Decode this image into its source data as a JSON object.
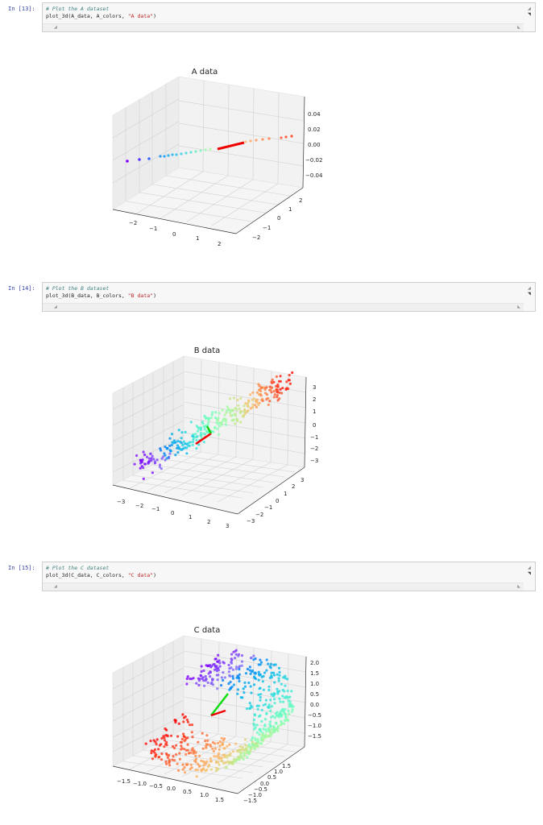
{
  "cells": [
    {
      "prompt": "In [13]:",
      "comment": "# Plot the A dataset",
      "code_prefix": "plot_3d(A_data, A_colors, ",
      "code_string": "\"A data\"",
      "code_suffix": ")"
    },
    {
      "prompt": "In [14]:",
      "comment": "# Plot the B dataset",
      "code_prefix": "plot_3d(B_data, B_colors, ",
      "code_string": "\"B data\"",
      "code_suffix": ")"
    },
    {
      "prompt": "In [15]:",
      "comment": "# Plot the C dataset",
      "code_prefix": "plot_3d(C_data, C_colors, ",
      "code_string": "\"C data\"",
      "code_suffix": ")"
    }
  ],
  "scroll_icons": {
    "left": "◢",
    "right": "◣",
    "up": "◢",
    "down": "◥"
  },
  "chart_data": [
    {
      "type": "scatter",
      "title": "A data",
      "xlabel": "",
      "ylabel": "",
      "zlabel": "",
      "x_ticks": [
        "−2",
        "−1",
        "0",
        "1",
        "2"
      ],
      "y_ticks": [
        "−2",
        "−1",
        "0",
        "1",
        "2"
      ],
      "z_ticks": [
        "0.04",
        "0.02",
        "0.00",
        "−0.02",
        "−0.04"
      ],
      "xlim": [
        -2.5,
        2.5
      ],
      "ylim": [
        -2.5,
        2.5
      ],
      "zlim": [
        -0.05,
        0.05
      ],
      "grid": true,
      "description": "Points along a straight line at z=0, colored by rainbow colormap from purple to red; red principal-component vector drawn along the line",
      "vectors": [
        {
          "color": "#ff0000",
          "direction": "along line"
        }
      ]
    },
    {
      "type": "scatter",
      "title": "B data",
      "xlabel": "",
      "ylabel": "",
      "zlabel": "",
      "x_ticks": [
        "−3",
        "−2",
        "−1",
        "0",
        "1",
        "2",
        "3"
      ],
      "y_ticks": [
        "−3",
        "−2",
        "−1",
        "0",
        "1",
        "2",
        "3"
      ],
      "z_ticks": [
        "3",
        "2",
        "1",
        "0",
        "−1",
        "−2",
        "−3"
      ],
      "xlim": [
        -3,
        3
      ],
      "ylim": [
        -3,
        3
      ],
      "zlim": [
        -3,
        3
      ],
      "grid": true,
      "description": "Elongated ellipsoidal point cloud along diagonal, rainbow colored; red long vector and green short vector at center",
      "vectors": [
        {
          "color": "#ff0000",
          "length": "long"
        },
        {
          "color": "#00cc00",
          "length": "short"
        }
      ]
    },
    {
      "type": "scatter",
      "title": "C data",
      "xlabel": "",
      "ylabel": "",
      "zlabel": "",
      "x_ticks": [
        "−1.5",
        "−1.0",
        "−0.5",
        "0.0",
        "0.5",
        "1.0",
        "1.5"
      ],
      "y_ticks": [
        "−1.5",
        "−1.0",
        "−0.5",
        "0.0",
        "0.5",
        "1.0",
        "1.5"
      ],
      "z_ticks": [
        "2.0",
        "1.5",
        "1.0",
        "0.5",
        "0.0",
        "−0.5",
        "−1.0",
        "−1.5"
      ],
      "xlim": [
        -1.5,
        1.5
      ],
      "ylim": [
        -1.5,
        1.5
      ],
      "zlim": [
        -1.5,
        2.0
      ],
      "grid": true,
      "description": "Swiss-roll / S-curve manifold point cloud, rainbow colored; green and red vectors from center",
      "vectors": [
        {
          "color": "#00cc00",
          "length": "long"
        },
        {
          "color": "#ff0000",
          "length": "short"
        }
      ]
    }
  ]
}
